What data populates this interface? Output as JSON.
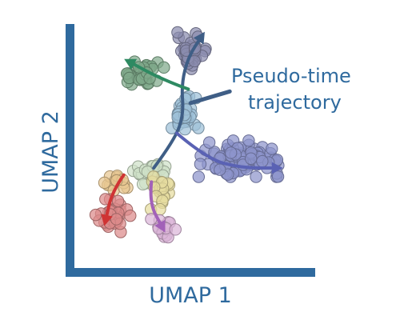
{
  "chart_data": {
    "type": "scatter",
    "xlabel": "UMAP 1",
    "ylabel": "UMAP 2",
    "grid": false,
    "xlim": [
      0,
      100
    ],
    "ylim": [
      0,
      100
    ],
    "annotation": {
      "lines": [
        "Pseudo-time",
        "trajectory"
      ],
      "pointer_from": [
        65,
        73
      ],
      "pointer_to": [
        48,
        68
      ]
    },
    "colors": {
      "axis": "#2f6a9e",
      "text": "#2f6a9e",
      "trajectory": "#3f5e86"
    },
    "clusters": [
      {
        "id": "top",
        "color": "#8b8cae",
        "center": [
          48,
          90
        ],
        "spread": [
          5,
          6.5
        ],
        "count": 45
      },
      {
        "id": "upper-left",
        "color": "#7fa98a",
        "center": [
          26,
          80
        ],
        "spread": [
          8,
          4.5
        ],
        "count": 38
      },
      {
        "id": "middle",
        "color": "#9ec0d8",
        "center": [
          45,
          63
        ],
        "spread": [
          5,
          7
        ],
        "count": 42
      },
      {
        "id": "right",
        "color": "#8e94cc",
        "center": [
          71,
          44
        ],
        "spread": [
          15,
          6
        ],
        "count": 110
      },
      {
        "id": "junction",
        "color": "#cfe1c8",
        "center": [
          30,
          38
        ],
        "spread": [
          7,
          4
        ],
        "count": 26
      },
      {
        "id": "yellow",
        "color": "#e6dca0",
        "center": [
          36,
          30
        ],
        "spread": [
          4,
          6
        ],
        "count": 22
      },
      {
        "id": "orange",
        "color": "#e8c690",
        "center": [
          16,
          34
        ],
        "spread": [
          5,
          4
        ],
        "count": 14
      },
      {
        "id": "red",
        "color": "#dc8b8b",
        "center": [
          14,
          20
        ],
        "spread": [
          6,
          6
        ],
        "count": 34
      },
      {
        "id": "pink",
        "color": "#dbb5d8",
        "center": [
          37,
          13
        ],
        "spread": [
          6,
          4
        ],
        "count": 18
      }
    ],
    "trajectories": [
      {
        "id": "main-trunk",
        "color": "#3f5e86",
        "points": [
          [
            32,
            40
          ],
          [
            41,
            52
          ],
          [
            45,
            63
          ],
          [
            44,
            76
          ],
          [
            47,
            88
          ],
          [
            53,
            97
          ]
        ]
      },
      {
        "id": "to-upper-left",
        "color": "#2e8a62",
        "points": [
          [
            47,
            74
          ],
          [
            36,
            78
          ],
          [
            21,
            86
          ]
        ]
      },
      {
        "id": "to-right",
        "color": "#5a62b4",
        "points": [
          [
            42,
            55
          ],
          [
            55,
            44
          ],
          [
            70,
            40
          ],
          [
            86,
            40
          ]
        ]
      },
      {
        "id": "to-red",
        "color": "#cf3434",
        "points": [
          [
            19,
            37
          ],
          [
            14,
            30
          ],
          [
            11,
            17
          ]
        ]
      },
      {
        "id": "to-purple",
        "color": "#a261b8",
        "points": [
          [
            31,
            34
          ],
          [
            30,
            25
          ],
          [
            36,
            14
          ]
        ]
      }
    ]
  }
}
